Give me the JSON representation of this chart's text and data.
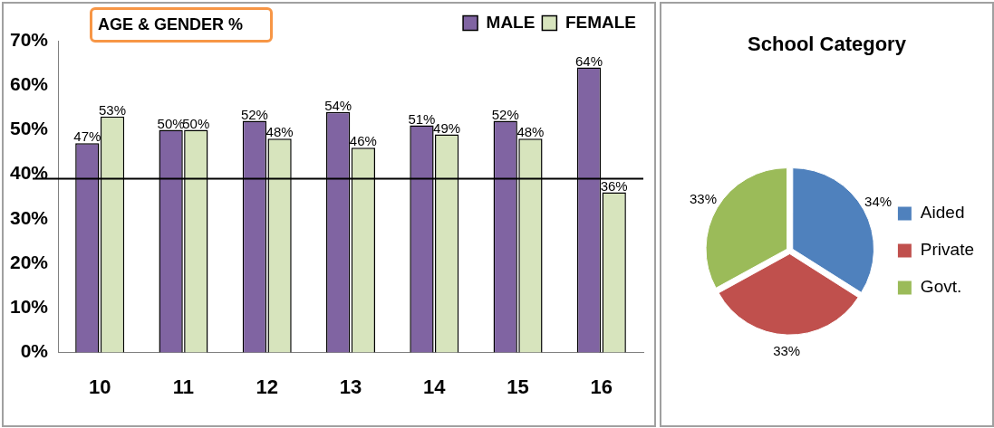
{
  "chart_data": [
    {
      "type": "bar",
      "title": "AGE & GENDER %",
      "categories": [
        "10",
        "11",
        "12",
        "13",
        "14",
        "15",
        "16"
      ],
      "series": [
        {
          "name": "MALE",
          "color": "#8064a2",
          "values": [
            47,
            50,
            52,
            54,
            51,
            52,
            64
          ],
          "value_labels": [
            "47%",
            "50%",
            "52%",
            "54%",
            "51%",
            "52%",
            "64%"
          ]
        },
        {
          "name": "FEMALE",
          "color": "#d7e4bd",
          "values": [
            53,
            50,
            48,
            46,
            49,
            48,
            36
          ],
          "value_labels": [
            "53%",
            "50%",
            "48%",
            "46%",
            "49%",
            "48%",
            "36%"
          ]
        }
      ],
      "ylim": [
        0,
        70
      ],
      "yticks": [
        {
          "value": 0,
          "label": "0%"
        },
        {
          "value": 10,
          "label": "10%"
        },
        {
          "value": 20,
          "label": "20%"
        },
        {
          "value": 30,
          "label": "30%"
        },
        {
          "value": 40,
          "label": "40%"
        },
        {
          "value": 50,
          "label": "50%"
        },
        {
          "value": 60,
          "label": "60%"
        },
        {
          "value": 70,
          "label": "70%"
        }
      ],
      "ref_lines": [
        {
          "axis": "y",
          "value": 39,
          "color": "#000000"
        }
      ],
      "legend": "top right"
    },
    {
      "type": "pie",
      "title": "School Category",
      "categories": [
        "Aided",
        "Private",
        "Govt."
      ],
      "values": [
        34,
        33,
        33
      ],
      "colors": [
        "#4f81bd",
        "#c0504d",
        "#9bbb59"
      ],
      "value_labels": [
        "34%",
        "33%",
        "33%"
      ],
      "legend": "right"
    }
  ]
}
